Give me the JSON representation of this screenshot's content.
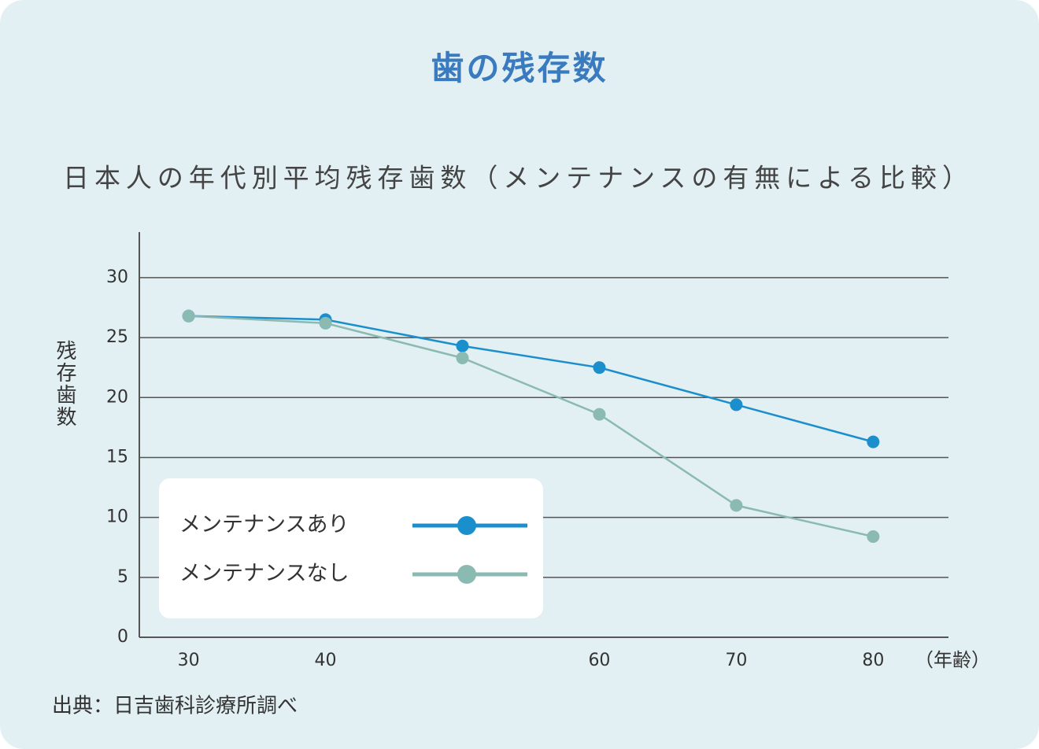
{
  "chart_data": {
    "type": "line",
    "title": "歯の残存数",
    "subtitle": "日本人の年代別平均残存歯数（メンテナンスの有無による比較）",
    "ylabel": "残存歯数",
    "xlabel": "（年齢）",
    "source": "出典：日吉歯科診療所調べ",
    "x": [
      30,
      40,
      50,
      60,
      70,
      80
    ],
    "series": [
      {
        "name": "メンテナンスあり",
        "color": "#1a8fcc",
        "values": [
          26.8,
          26.5,
          24.3,
          22.5,
          19.4,
          16.3
        ]
      },
      {
        "name": "メンテナンスなし",
        "color": "#8bbab2",
        "values": [
          26.8,
          26.2,
          23.3,
          18.6,
          11.0,
          8.4
        ]
      }
    ],
    "xlim": [
      26.4,
      85.5
    ],
    "xticks": [
      30,
      40,
      60,
      70,
      80
    ],
    "ylim": [
      0,
      33.8
    ],
    "yticks": [
      0,
      5,
      10,
      15,
      20,
      25,
      30
    ],
    "grid": true
  }
}
